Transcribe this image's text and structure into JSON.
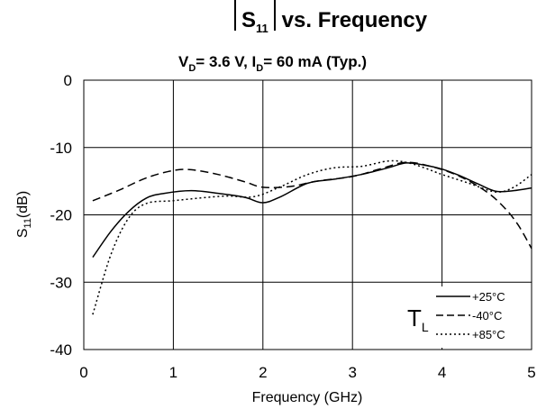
{
  "chart_data": {
    "type": "line",
    "title_main": "S",
    "title_sub": "11",
    "title_rest": " vs. Frequency",
    "subtitle": {
      "v_main": "V",
      "v_sub": "D",
      "v_rest": "= 3.6 V, I",
      "i_sub": "D",
      "i_rest": "= 60 mA (Typ.)"
    },
    "xlabel": "Frequency (GHz)",
    "ylabel_main": "S",
    "ylabel_sub": "11",
    "ylabel_rest": "(dB)",
    "xlim": [
      0,
      5
    ],
    "ylim": [
      -40,
      0
    ],
    "xticks": [
      0,
      1,
      2,
      3,
      4,
      5
    ],
    "xtick_labels": [
      "0",
      "1",
      "2",
      "3",
      "4",
      "5"
    ],
    "yticks": [
      0,
      -10,
      -20,
      -30,
      -40
    ],
    "ytick_labels": [
      "0",
      "-10",
      "-20",
      "-30",
      "-40"
    ],
    "grid": true,
    "legend": {
      "position": "bottom-right",
      "title_main": "T",
      "title_sub": "L",
      "entries": [
        "+25°C",
        "-40°C",
        "+85°C"
      ]
    },
    "series": [
      {
        "name": "+25°C",
        "style": "solid",
        "x": [
          0.1,
          0.3,
          0.5,
          0.7,
          0.9,
          1.2,
          1.5,
          1.8,
          2.0,
          2.2,
          2.5,
          2.8,
          3.1,
          3.4,
          3.6,
          3.8,
          4.0,
          4.2,
          4.4,
          4.6,
          4.8,
          5.0
        ],
        "y": [
          -26.3,
          -22.5,
          -19.5,
          -17.5,
          -16.8,
          -16.4,
          -16.8,
          -17.4,
          -18.2,
          -17.3,
          -15.3,
          -14.7,
          -14.0,
          -13.0,
          -12.3,
          -12.6,
          -13.2,
          -14.2,
          -15.4,
          -16.5,
          -16.4,
          -16.0
        ]
      },
      {
        "name": "-40°C",
        "style": "dashed",
        "x": [
          0.1,
          0.4,
          0.7,
          1.0,
          1.2,
          1.5,
          1.8,
          2.0,
          2.3,
          2.6,
          3.0,
          3.3,
          3.6,
          3.9,
          4.2,
          4.5,
          4.7,
          4.85,
          5.0
        ],
        "y": [
          -17.9,
          -16.3,
          -14.5,
          -13.4,
          -13.3,
          -14.0,
          -15.1,
          -15.9,
          -15.8,
          -15.0,
          -14.3,
          -13.2,
          -12.2,
          -12.9,
          -14.3,
          -16.6,
          -19.0,
          -21.5,
          -25.0
        ]
      },
      {
        "name": "+85°C",
        "style": "dotted",
        "x": [
          0.1,
          0.3,
          0.5,
          0.7,
          1.0,
          1.3,
          1.6,
          1.9,
          2.2,
          2.5,
          2.8,
          3.1,
          3.4,
          3.6,
          3.8,
          4.0,
          4.3,
          4.6,
          4.8,
          5.0
        ],
        "y": [
          -34.8,
          -26.0,
          -20.5,
          -18.3,
          -17.9,
          -17.5,
          -17.2,
          -17.3,
          -15.8,
          -14.0,
          -13.0,
          -12.8,
          -12.0,
          -12.2,
          -13.0,
          -14.0,
          -15.3,
          -16.6,
          -15.9,
          -14.0
        ]
      }
    ]
  }
}
